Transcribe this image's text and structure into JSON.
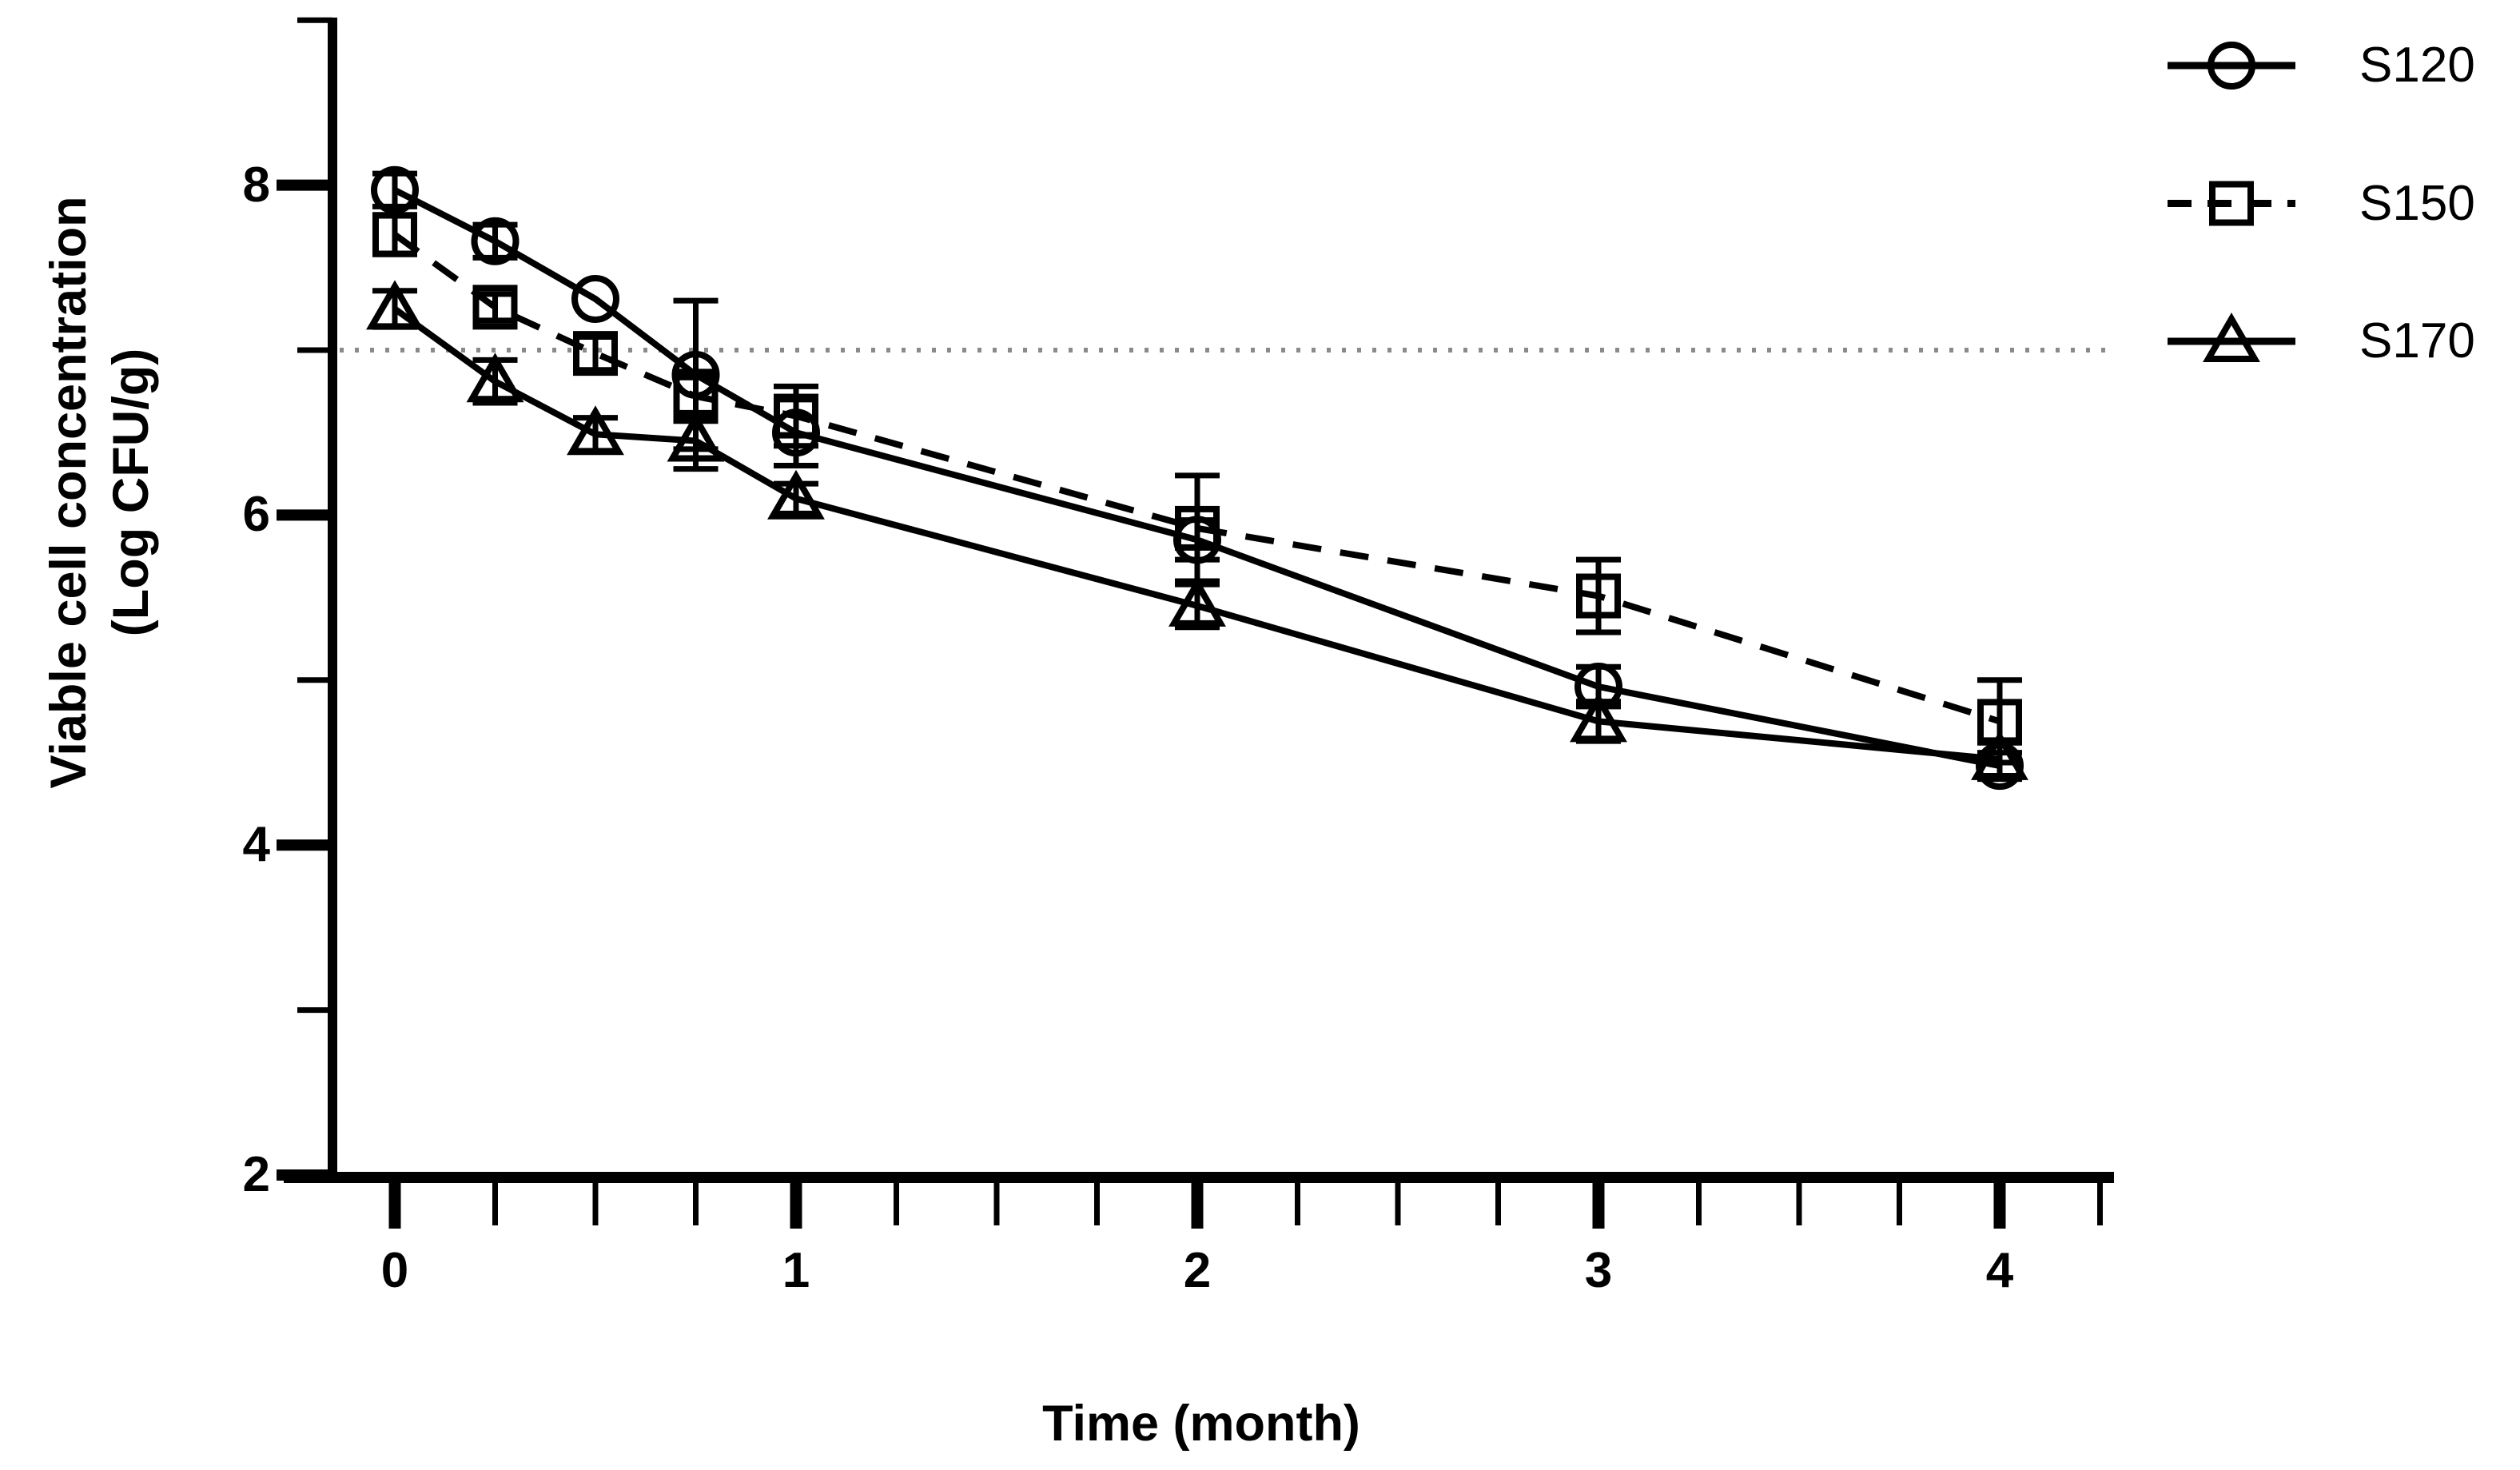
{
  "figure": {
    "background": "#ffffff",
    "ink_color": "#000000",
    "threshold_color": "#8a8a8a"
  },
  "chart_data": {
    "type": "line",
    "title": "",
    "xlabel": "Time (month)",
    "ylabel_line1": "Viable cell concentration",
    "ylabel_line2": "(Log CFU/g)",
    "xlim": [
      -0.16,
      4.3
    ],
    "ylim": [
      2,
      9
    ],
    "grid": "off",
    "x_ticks_major": [
      0,
      1,
      2,
      3,
      4
    ],
    "x_tick_labels": [
      "0",
      "1",
      "2",
      "3",
      "4"
    ],
    "x_minor_tick_step": 0.25,
    "y_ticks_major": [
      8,
      6,
      4,
      2
    ],
    "y_tick_labels": [
      "8",
      "6",
      "4",
      "2"
    ],
    "y_ticks_minor": [
      3,
      5,
      7,
      9
    ],
    "threshold_line": {
      "y": 7,
      "style": "dotted"
    },
    "legend": {
      "position": "top-right",
      "entries": [
        "S120",
        "S150",
        "S170"
      ]
    },
    "x": [
      0,
      0.25,
      0.5,
      0.75,
      1,
      2,
      3,
      4
    ],
    "series": [
      {
        "name": "S120",
        "marker": "circle",
        "line_style": "solid",
        "values": [
          7.97,
          7.66,
          7.31,
          6.85,
          6.5,
          5.85,
          4.96,
          4.48
        ],
        "errors": [
          0.1,
          0.1,
          0,
          0.45,
          0.2,
          0.12,
          0.12,
          0.08
        ]
      },
      {
        "name": "S150",
        "marker": "square",
        "line_style": "dashed",
        "values": [
          7.7,
          7.26,
          6.98,
          6.72,
          6.6,
          5.92,
          5.51,
          4.75
        ],
        "errors": [
          0.12,
          0.08,
          0.1,
          0.15,
          0.18,
          0.32,
          0.22,
          0.25
        ]
      },
      {
        "name": "S170",
        "marker": "triangle",
        "line_style": "solid",
        "values": [
          7.25,
          6.81,
          6.49,
          6.45,
          6.1,
          5.45,
          4.75,
          4.52
        ],
        "errors": [
          0.11,
          0.13,
          0.1,
          0.17,
          0.09,
          0.13,
          0.12,
          0.1
        ]
      }
    ]
  }
}
